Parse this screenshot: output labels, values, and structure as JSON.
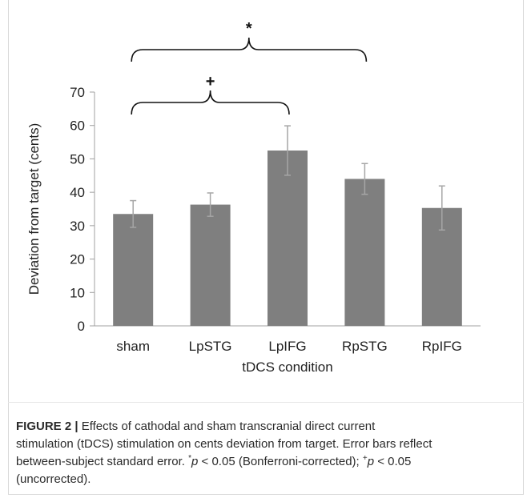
{
  "chart_data": {
    "type": "bar",
    "categories": [
      "sham",
      "LpSTG",
      "LpIFG",
      "RpSTG",
      "RpIFG"
    ],
    "values": [
      33.5,
      36.3,
      52.5,
      44.0,
      35.3
    ],
    "errors": [
      4.0,
      3.5,
      7.4,
      4.6,
      6.6
    ],
    "xlabel": "tDCS condition",
    "ylabel": "Deviation from target (cents)",
    "ylim": [
      0,
      70
    ],
    "yticks": [
      0,
      10,
      20,
      30,
      40,
      50,
      60,
      70
    ],
    "grid": false,
    "bar_color": "#7f7f7f",
    "error_color": "#a6a6a6",
    "annotations": [
      {
        "label": "*",
        "from": "sham",
        "to": "RpSTG"
      },
      {
        "label": "+",
        "from": "sham",
        "to": "LpIFG"
      }
    ]
  },
  "caption": {
    "label": "FIGURE 2 |",
    "line1": "Effects of cathodal and sham transcranial direct current",
    "line2": "stimulation (tDCS) stimulation on cents deviation from target. Error bars reflect",
    "line3_a": "between-subject standard error. ",
    "sym_star": "*",
    "p1": "p",
    "line3_b": " < 0.05 (Bonferroni-corrected); ",
    "sym_plus": "+",
    "p2": "p",
    "line3_c": " < 0.05",
    "line4": "(uncorrected)."
  }
}
